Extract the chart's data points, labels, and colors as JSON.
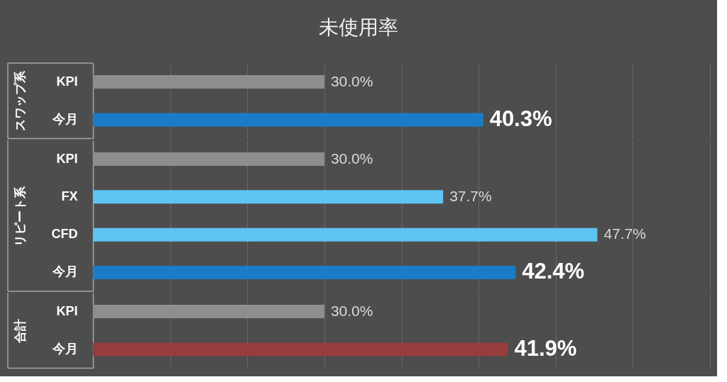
{
  "chart_data": [
    {
      "type": "bar",
      "orientation": "horizontal",
      "title": "未使用率",
      "ylabel": "スワップ系",
      "categories": [
        "KPI",
        "今月"
      ],
      "values": [
        30.0,
        40.3
      ],
      "colors": [
        "#8e8e8e",
        "#1a7cc6"
      ],
      "value_labels": [
        "30.0%",
        "40.3%"
      ],
      "xlim": [
        15,
        55
      ],
      "xticks": [
        15,
        20,
        25,
        30,
        35,
        40,
        45,
        50,
        55
      ],
      "tick_labels": "y",
      "grid": "x"
    },
    {
      "type": "bar",
      "orientation": "horizontal",
      "ylabel": "リピート系",
      "categories": [
        "KPI",
        "FX",
        "CFD",
        "今月"
      ],
      "values": [
        30.0,
        37.7,
        47.7,
        42.4
      ],
      "colors": [
        "#8e8e8e",
        "#5ec4f4",
        "#5ec4f4",
        "#1a7cc6"
      ],
      "value_labels": [
        "30.0%",
        "37.7%",
        "47.7%",
        "42.4%"
      ],
      "xlim": [
        15,
        55
      ],
      "xticks": [
        15,
        20,
        25,
        30,
        35,
        40,
        45,
        50,
        55
      ],
      "tick_labels": "y",
      "grid": "x"
    },
    {
      "type": "bar",
      "orientation": "horizontal",
      "ylabel": "合計",
      "categories": [
        "KPI",
        "今月"
      ],
      "values": [
        30.0,
        41.9
      ],
      "colors": [
        "#8e8e8e",
        "#963c3c"
      ],
      "value_labels": [
        "30.0%",
        "41.9%"
      ],
      "xlim": [
        15,
        55
      ],
      "xticks": [
        15,
        20,
        25,
        30,
        35,
        40,
        45,
        50,
        55
      ],
      "tick_labels": "y",
      "grid": "x"
    }
  ]
}
